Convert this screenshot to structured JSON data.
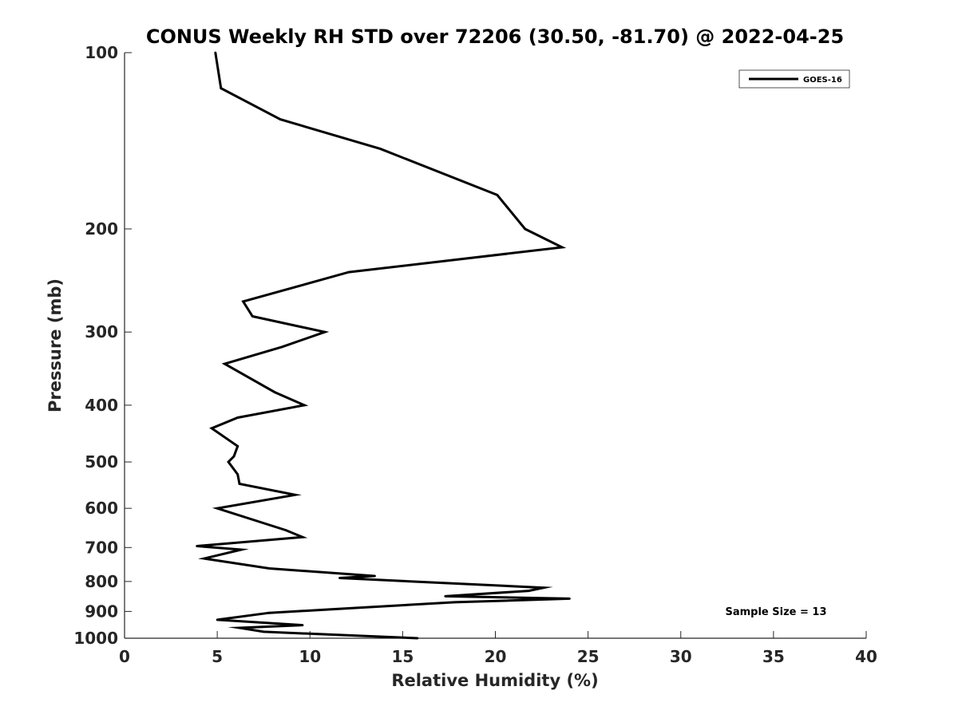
{
  "chart_data": {
    "type": "line",
    "title": "CONUS Weekly RH STD over 72206 (30.50, -81.70) @ 2022-04-25",
    "xlabel": "Relative Humidity (%)",
    "ylabel": "Pressure (mb)",
    "xlim": [
      0,
      40
    ],
    "ylim": [
      1000,
      100
    ],
    "yscale": "log",
    "xticks": [
      0,
      5,
      10,
      15,
      20,
      25,
      30,
      35,
      40
    ],
    "yticks": [
      100,
      200,
      300,
      400,
      500,
      600,
      700,
      800,
      900,
      1000
    ],
    "grid": false,
    "legend_position": "top-right",
    "annotation": "Sample Size = 13",
    "colors": {
      "line": "#000000",
      "axis": "#262626"
    },
    "series": [
      {
        "name": "GOES-16",
        "points": [
          [
            4.9,
            100
          ],
          [
            5.2,
            115
          ],
          [
            8.4,
            130
          ],
          [
            13.8,
            146
          ],
          [
            20.1,
            175
          ],
          [
            21.6,
            200
          ],
          [
            23.6,
            215
          ],
          [
            12.1,
            237
          ],
          [
            6.4,
            266
          ],
          [
            6.9,
            282
          ],
          [
            10.8,
            300
          ],
          [
            8.5,
            318
          ],
          [
            5.4,
            340
          ],
          [
            8.1,
            380
          ],
          [
            9.7,
            400
          ],
          [
            6.1,
            420
          ],
          [
            4.7,
            438
          ],
          [
            6.1,
            470
          ],
          [
            5.9,
            489
          ],
          [
            5.6,
            500
          ],
          [
            6.1,
            525
          ],
          [
            6.2,
            545
          ],
          [
            9.2,
            569
          ],
          [
            5.0,
            600
          ],
          [
            8.7,
            654
          ],
          [
            9.6,
            672
          ],
          [
            3.9,
            696
          ],
          [
            6.3,
            706
          ],
          [
            4.3,
            731
          ],
          [
            7.8,
            760
          ],
          [
            13.5,
            783
          ],
          [
            11.6,
            789
          ],
          [
            22.6,
            820
          ],
          [
            21.8,
            830
          ],
          [
            17.3,
            848
          ],
          [
            24.0,
            856
          ],
          [
            17.8,
            868
          ],
          [
            7.8,
            905
          ],
          [
            5.0,
            930
          ],
          [
            9.6,
            950
          ],
          [
            6.2,
            960
          ],
          [
            7.5,
            975
          ],
          [
            15.8,
            1000
          ]
        ]
      }
    ]
  }
}
